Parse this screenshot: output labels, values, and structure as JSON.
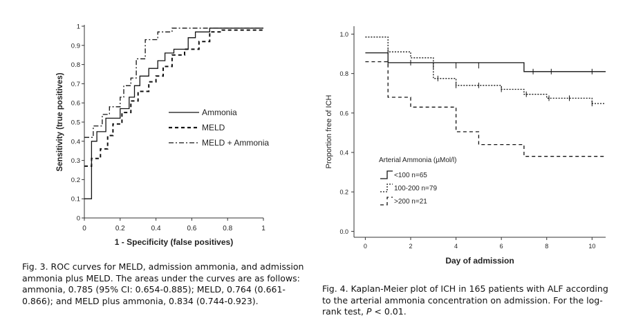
{
  "figure3": {
    "caption_label": "Fig. 3.",
    "caption_text": "ROC curves for MELD, admission ammonia, and admission ammonia plus MELD. The areas under the curves are as follows: ammonia, 0.785 (95% CI: 0.654-0.885); MELD, 0.764 (0.661-0.866); and MELD plus ammonia, 0.834 (0.744-0.923)."
  },
  "figure4": {
    "caption_label": "Fig. 4.",
    "caption_text": "Kaplan-Meier plot of ICH in 165 patients with ALF according to the arterial ammonia concentration on admission. For the log-rank test,",
    "caption_p": "P",
    "caption_tail": " < 0.01."
  },
  "chart_data": [
    {
      "type": "line",
      "xlabel": "1 - Specificity (false positives)",
      "ylabel": "Sensitivity (true positives)",
      "xlim": [
        0,
        1
      ],
      "ylim": [
        0,
        1
      ],
      "x_ticks": [
        "0",
        "0.2",
        "0.4",
        "0.6",
        "0.8",
        "1"
      ],
      "y_ticks": [
        "0",
        "0.1",
        "0.2",
        "0.3",
        "0.4",
        "0.5",
        "0.6",
        "0.7",
        "0.8",
        "0.9",
        "1"
      ],
      "legend_position": "center-right",
      "series": [
        {
          "name": "Ammonia",
          "style": "solid",
          "points": [
            [
              0,
              0.1
            ],
            [
              0.04,
              0.1
            ],
            [
              0.04,
              0.4
            ],
            [
              0.07,
              0.4
            ],
            [
              0.07,
              0.45
            ],
            [
              0.12,
              0.45
            ],
            [
              0.12,
              0.52
            ],
            [
              0.2,
              0.52
            ],
            [
              0.2,
              0.57
            ],
            [
              0.25,
              0.57
            ],
            [
              0.25,
              0.63
            ],
            [
              0.28,
              0.63
            ],
            [
              0.28,
              0.69
            ],
            [
              0.31,
              0.69
            ],
            [
              0.31,
              0.74
            ],
            [
              0.36,
              0.74
            ],
            [
              0.36,
              0.78
            ],
            [
              0.41,
              0.78
            ],
            [
              0.41,
              0.82
            ],
            [
              0.45,
              0.82
            ],
            [
              0.45,
              0.86
            ],
            [
              0.5,
              0.86
            ],
            [
              0.5,
              0.88
            ],
            [
              0.58,
              0.88
            ],
            [
              0.58,
              0.94
            ],
            [
              0.62,
              0.94
            ],
            [
              0.62,
              0.97
            ],
            [
              0.7,
              0.97
            ],
            [
              0.7,
              0.99
            ],
            [
              1,
              0.99
            ]
          ]
        },
        {
          "name": "MELD",
          "style": "dashed",
          "points": [
            [
              0,
              0.27
            ],
            [
              0.04,
              0.27
            ],
            [
              0.04,
              0.31
            ],
            [
              0.09,
              0.31
            ],
            [
              0.09,
              0.36
            ],
            [
              0.13,
              0.36
            ],
            [
              0.13,
              0.43
            ],
            [
              0.16,
              0.43
            ],
            [
              0.16,
              0.49
            ],
            [
              0.21,
              0.49
            ],
            [
              0.21,
              0.55
            ],
            [
              0.26,
              0.55
            ],
            [
              0.26,
              0.61
            ],
            [
              0.3,
              0.61
            ],
            [
              0.3,
              0.66
            ],
            [
              0.36,
              0.66
            ],
            [
              0.36,
              0.71
            ],
            [
              0.4,
              0.71
            ],
            [
              0.4,
              0.74
            ],
            [
              0.44,
              0.74
            ],
            [
              0.44,
              0.79
            ],
            [
              0.49,
              0.79
            ],
            [
              0.49,
              0.85
            ],
            [
              0.56,
              0.85
            ],
            [
              0.56,
              0.88
            ],
            [
              0.64,
              0.88
            ],
            [
              0.64,
              0.92
            ],
            [
              0.7,
              0.92
            ],
            [
              0.7,
              0.97
            ],
            [
              0.77,
              0.97
            ],
            [
              0.77,
              0.98
            ],
            [
              1,
              0.98
            ]
          ]
        },
        {
          "name": "MELD + Ammonia",
          "style": "dash-dot",
          "points": [
            [
              0,
              0.42
            ],
            [
              0.05,
              0.42
            ],
            [
              0.05,
              0.48
            ],
            [
              0.1,
              0.48
            ],
            [
              0.1,
              0.54
            ],
            [
              0.14,
              0.54
            ],
            [
              0.14,
              0.58
            ],
            [
              0.2,
              0.58
            ],
            [
              0.2,
              0.63
            ],
            [
              0.22,
              0.63
            ],
            [
              0.22,
              0.69
            ],
            [
              0.26,
              0.69
            ],
            [
              0.26,
              0.73
            ],
            [
              0.29,
              0.73
            ],
            [
              0.29,
              0.83
            ],
            [
              0.34,
              0.83
            ],
            [
              0.34,
              0.93
            ],
            [
              0.41,
              0.93
            ],
            [
              0.41,
              0.97
            ],
            [
              0.49,
              0.97
            ],
            [
              0.49,
              0.99
            ],
            [
              1,
              0.99
            ]
          ]
        }
      ]
    },
    {
      "type": "line",
      "xlabel": "Day of admission",
      "ylabel": "Proportion free of ICH",
      "xlim": [
        -0.5,
        10.6
      ],
      "ylim": [
        -0.03,
        1.04
      ],
      "x_ticks": [
        "0",
        "2",
        "4",
        "6",
        "8",
        "10"
      ],
      "y_ticks": [
        "0.0",
        "0.2",
        "0.4",
        "0.6",
        "0.8",
        "1.0"
      ],
      "legend_title": "Arterial Ammonia (µMol/l)",
      "legend_position": "bottom-left",
      "series": [
        {
          "name": "<100  n=65",
          "style": "solid",
          "points": [
            [
              0,
              0.905
            ],
            [
              1,
              0.905
            ],
            [
              1,
              0.855
            ],
            [
              7,
              0.855
            ],
            [
              7,
              0.81
            ],
            [
              10.6,
              0.81
            ]
          ],
          "censored": [
            [
              1,
              0.855
            ],
            [
              2,
              0.855
            ],
            [
              3,
              0.84
            ],
            [
              4,
              0.84
            ],
            [
              5,
              0.84
            ],
            [
              7.4,
              0.81
            ],
            [
              8.2,
              0.81
            ],
            [
              10,
              0.81
            ]
          ]
        },
        {
          "name": "100-200  n=79",
          "style": "dotted",
          "points": [
            [
              0,
              0.985
            ],
            [
              1,
              0.985
            ],
            [
              1,
              0.91
            ],
            [
              2,
              0.91
            ],
            [
              2,
              0.88
            ],
            [
              3,
              0.88
            ],
            [
              3,
              0.775
            ],
            [
              4,
              0.775
            ],
            [
              4,
              0.74
            ],
            [
              6,
              0.74
            ],
            [
              6,
              0.72
            ],
            [
              7,
              0.72
            ],
            [
              7,
              0.695
            ],
            [
              8,
              0.695
            ],
            [
              8,
              0.675
            ],
            [
              10,
              0.675
            ],
            [
              10,
              0.648
            ],
            [
              10.6,
              0.648
            ]
          ],
          "censored": [
            [
              1,
              0.91
            ],
            [
              3.2,
              0.775
            ],
            [
              4,
              0.74
            ],
            [
              5,
              0.74
            ],
            [
              6,
              0.72
            ],
            [
              7.1,
              0.695
            ],
            [
              8.1,
              0.675
            ],
            [
              9,
              0.675
            ],
            [
              10,
              0.648
            ]
          ]
        },
        {
          "name": ">200  n=21",
          "style": "dashed",
          "points": [
            [
              0,
              0.86
            ],
            [
              1,
              0.86
            ],
            [
              1,
              0.68
            ],
            [
              2,
              0.68
            ],
            [
              2,
              0.63
            ],
            [
              4,
              0.63
            ],
            [
              4,
              0.505
            ],
            [
              5,
              0.505
            ],
            [
              5,
              0.44
            ],
            [
              7,
              0.44
            ],
            [
              7,
              0.38
            ],
            [
              10.6,
              0.38
            ]
          ],
          "censored": []
        }
      ]
    }
  ]
}
